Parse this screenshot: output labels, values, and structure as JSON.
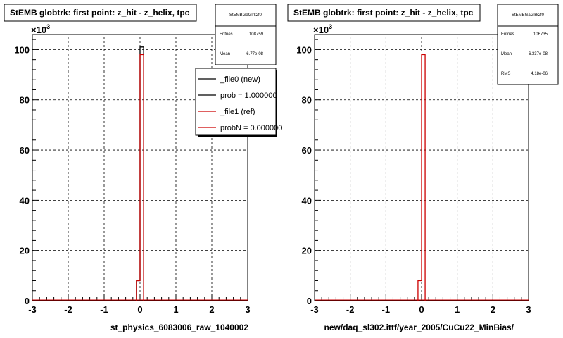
{
  "chart_data": [
    {
      "type": "bar",
      "title": "StEMB globtrk: first point: z_hit - z_helix, tpc",
      "xlabel": "st_physics_6083006_raw_1040002",
      "ylabel": "",
      "exponent_label": "×10",
      "exponent": "3",
      "xlim": [
        -3,
        3
      ],
      "ylim": [
        0,
        106
      ],
      "xticks": [
        "-3",
        "-2",
        "-1",
        "0",
        "1",
        "2",
        "3"
      ],
      "yticks": [
        "0",
        "20",
        "40",
        "60",
        "80",
        "100"
      ],
      "grid": true,
      "legend_position": "top-right",
      "bin_edges": [
        -0.1,
        0,
        0.1
      ],
      "series": [
        {
          "name": "_file0 (new)",
          "color": "#000000",
          "values": [
            8,
            101
          ]
        },
        {
          "name": "_file1 (ref)",
          "color": "#cc0000",
          "values": [
            8,
            98
          ]
        }
      ],
      "stats": {
        "title": "StEMBGaGlrk2f0",
        "rows": [
          {
            "label": "Entries",
            "value": "108759"
          },
          {
            "label": "Mean",
            "value": "-6.77e-08"
          }
        ]
      },
      "legend": [
        {
          "label": "_file0 (new)",
          "color": "#000000"
        },
        {
          "label": "prob = 1.000000",
          "color": "#000000"
        },
        {
          "label": "_file1 (ref)",
          "color": "#cc0000"
        },
        {
          "label": "probN = 0.000000",
          "color": "#cc0000"
        }
      ]
    },
    {
      "type": "bar",
      "title": "StEMB globtrk: first point: z_hit - z_helix, tpc",
      "xlabel": "new/daq_sl302.ittf/year_2005/CuCu22_MinBias/",
      "ylabel": "",
      "exponent_label": "×10",
      "exponent": "3",
      "xlim": [
        -3,
        3
      ],
      "ylim": [
        0,
        106
      ],
      "xticks": [
        "-3",
        "-2",
        "-1",
        "0",
        "1",
        "2",
        "3"
      ],
      "yticks": [
        "0",
        "20",
        "40",
        "60",
        "80",
        "100"
      ],
      "grid": true,
      "bin_edges": [
        -0.1,
        0,
        0.1
      ],
      "series": [
        {
          "name": "",
          "color": "#cc0000",
          "values": [
            8,
            98
          ]
        }
      ],
      "stats": {
        "title": "StEMBGaGlrk2f0",
        "rows": [
          {
            "label": "Entries",
            "value": "106735"
          },
          {
            "label": "Mean",
            "value": "-6.337e-08"
          },
          {
            "label": "RMS",
            "value": "4.18e-06"
          }
        ]
      }
    }
  ]
}
